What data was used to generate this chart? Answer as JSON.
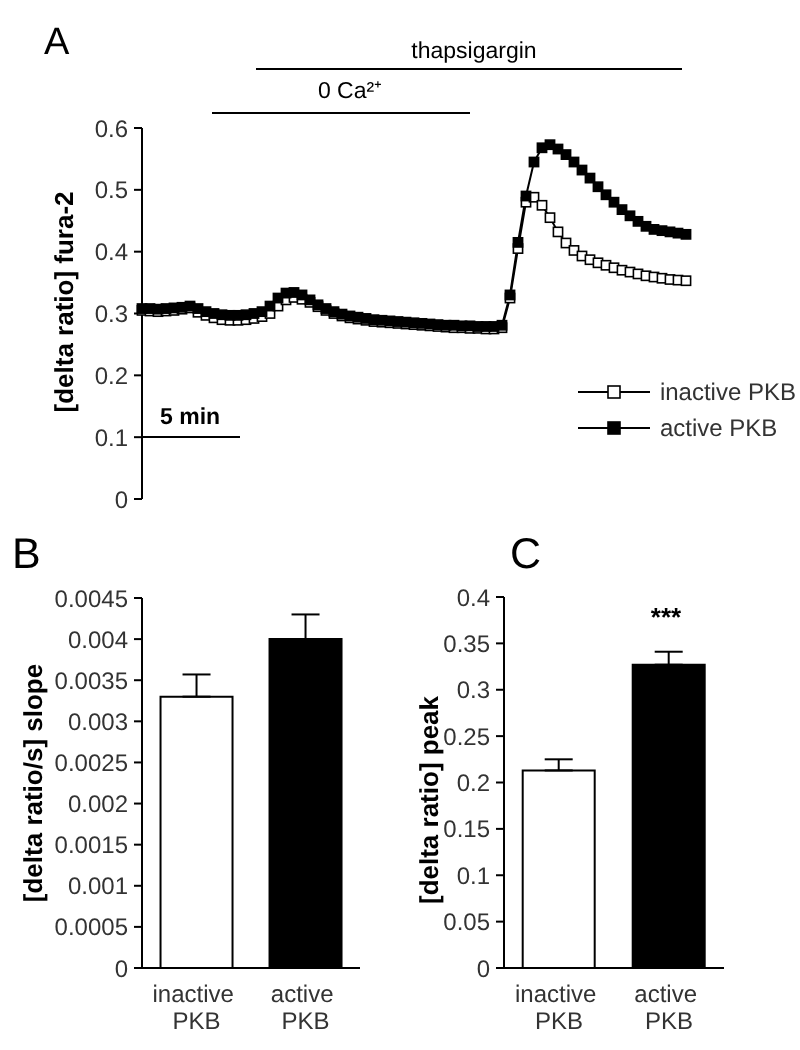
{
  "chart_data": [
    {
      "type": "line",
      "title": "A",
      "ylabel": "[delta ratio] fura-2",
      "categories": [
        null,
        null,
        null,
        null,
        null,
        null,
        null,
        null,
        null,
        null,
        null,
        null,
        null,
        null,
        null,
        null,
        null,
        null,
        null,
        null,
        null,
        null,
        null,
        null,
        null,
        null,
        null,
        null,
        null,
        null,
        null,
        null,
        null,
        null,
        null,
        null,
        null,
        null,
        null,
        null,
        null,
        null,
        null,
        null,
        null,
        null,
        null,
        null,
        null,
        null,
        null,
        null,
        null,
        null,
        null,
        null,
        null,
        null,
        null,
        null,
        null,
        null,
        null,
        null,
        null,
        null,
        null,
        null,
        null
      ],
      "series": [
        {
          "name": "inactive PKB",
          "color": "#ffffff",
          "values": [
            0.305,
            0.304,
            0.303,
            0.304,
            0.305,
            0.307,
            0.309,
            0.302,
            0.297,
            0.293,
            0.29,
            0.289,
            0.289,
            0.29,
            0.292,
            0.295,
            0.3,
            0.312,
            0.322,
            0.326,
            0.323,
            0.318,
            0.311,
            0.305,
            0.3,
            0.296,
            0.293,
            0.291,
            0.289,
            0.287,
            0.286,
            0.285,
            0.284,
            0.283,
            0.282,
            0.281,
            0.28,
            0.279,
            0.278,
            0.277,
            0.277,
            0.276,
            0.276,
            0.275,
            0.275,
            0.277,
            0.325,
            0.405,
            0.48,
            0.488,
            0.475,
            0.455,
            0.432,
            0.414,
            0.402,
            0.393,
            0.387,
            0.382,
            0.378,
            0.374,
            0.37,
            0.367,
            0.364,
            0.361,
            0.359,
            0.357,
            0.355,
            0.354,
            0.353
          ]
        },
        {
          "name": "active PKB",
          "color": "#000000",
          "values": [
            0.308,
            0.308,
            0.307,
            0.308,
            0.309,
            0.31,
            0.312,
            0.308,
            0.303,
            0.3,
            0.298,
            0.297,
            0.297,
            0.298,
            0.3,
            0.303,
            0.312,
            0.325,
            0.333,
            0.334,
            0.33,
            0.322,
            0.314,
            0.308,
            0.303,
            0.299,
            0.296,
            0.294,
            0.292,
            0.29,
            0.289,
            0.288,
            0.287,
            0.286,
            0.285,
            0.284,
            0.283,
            0.282,
            0.281,
            0.281,
            0.28,
            0.28,
            0.279,
            0.279,
            0.279,
            0.281,
            0.33,
            0.415,
            0.49,
            0.545,
            0.568,
            0.573,
            0.566,
            0.557,
            0.545,
            0.532,
            0.519,
            0.505,
            0.492,
            0.48,
            0.468,
            0.458,
            0.449,
            0.441,
            0.436,
            0.434,
            0.432,
            0.43,
            0.428
          ]
        }
      ],
      "ylim": [
        0,
        0.6
      ],
      "yticks": [
        0,
        0.1,
        0.2,
        0.3,
        0.4,
        0.5,
        0.6
      ],
      "tick_labels": "y",
      "legend": "bottom right",
      "marker": "square",
      "line_style": "solid",
      "annotations": [
        "thapsigargin",
        "0 Ca²⁺",
        "5 min"
      ]
    },
    {
      "type": "bar",
      "title": "B",
      "ylabel": "[delta ratio/s] slope",
      "categories": [
        "inactive PKB",
        "active PKB"
      ],
      "values": [
        0.0033,
        0.004
      ],
      "errors": [
        [
          0.0033,
          0.00357
        ],
        [
          0.004,
          0.0043
        ]
      ],
      "colors": [
        "#ffffff",
        "#000000"
      ],
      "ylim": [
        0,
        0.0045
      ],
      "yticks": [
        0,
        0.0005,
        0.001,
        0.0015,
        0.002,
        0.0025,
        0.003,
        0.0035,
        0.004,
        0.0045
      ]
    },
    {
      "type": "bar",
      "title": "C",
      "ylabel": "[delta ratio] peak",
      "categories": [
        "inactive PKB",
        "active PKB"
      ],
      "values": [
        0.213,
        0.327
      ],
      "errors": [
        [
          0.213,
          0.225
        ],
        [
          0.327,
          0.341
        ]
      ],
      "colors": [
        "#ffffff",
        "#000000"
      ],
      "ylim": [
        0,
        0.4
      ],
      "yticks": [
        0,
        0.05,
        0.1,
        0.15,
        0.2,
        0.25,
        0.3,
        0.35,
        0.4
      ],
      "annotations": [
        "***"
      ]
    }
  ]
}
